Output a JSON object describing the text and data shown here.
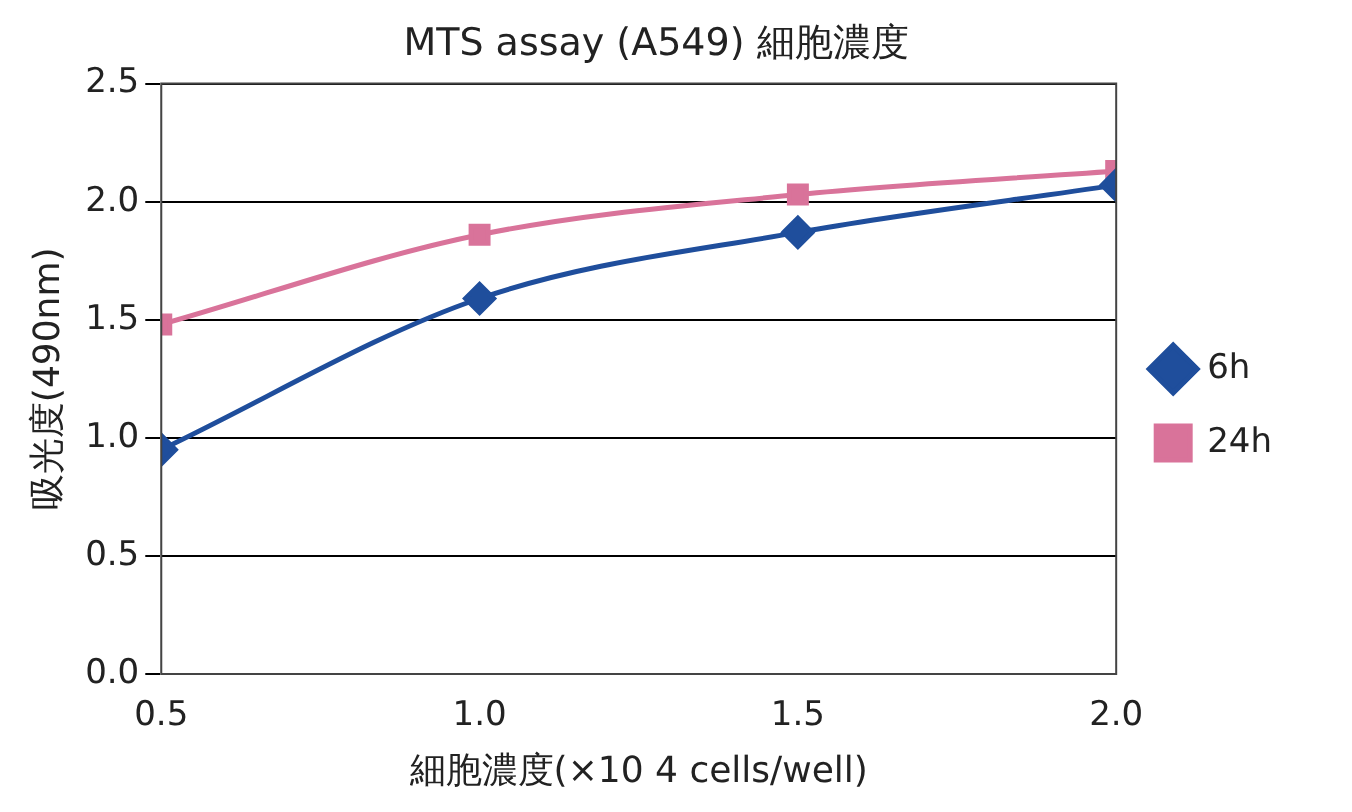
{
  "chart_data": {
    "type": "line",
    "title": "MTS assay (A549) 細胞濃度",
    "xlabel": "細胞濃度(×10 4 cells/well)",
    "ylabel": "吸光度(490nm)",
    "x": [
      0.5,
      1.0,
      1.5,
      2.0
    ],
    "series": [
      {
        "name": "6h",
        "color": "#1f4e9c",
        "marker": "diamond",
        "values": [
          0.95,
          1.59,
          1.87,
          2.07
        ]
      },
      {
        "name": "24h",
        "color": "#d9739a",
        "marker": "square",
        "values": [
          1.48,
          1.86,
          2.03,
          2.13
        ]
      }
    ],
    "xlim": [
      0.5,
      2.0
    ],
    "xticks": [
      {
        "value": 0.5,
        "label": "0.5"
      },
      {
        "value": 1.0,
        "label": "1.0"
      },
      {
        "value": 1.5,
        "label": "1.5"
      },
      {
        "value": 2.0,
        "label": "2.0"
      }
    ],
    "ylim": [
      0,
      2.5
    ],
    "yticks": [
      {
        "value": 0,
        "label": "0.0"
      },
      {
        "value": 0.5,
        "label": "0.5"
      },
      {
        "value": 1.0,
        "label": "1.0"
      },
      {
        "value": 1.5,
        "label": "1.5"
      },
      {
        "value": 2.0,
        "label": "2.0"
      },
      {
        "value": 2.5,
        "label": "2.5"
      }
    ],
    "grid": "y",
    "legend": "right"
  }
}
